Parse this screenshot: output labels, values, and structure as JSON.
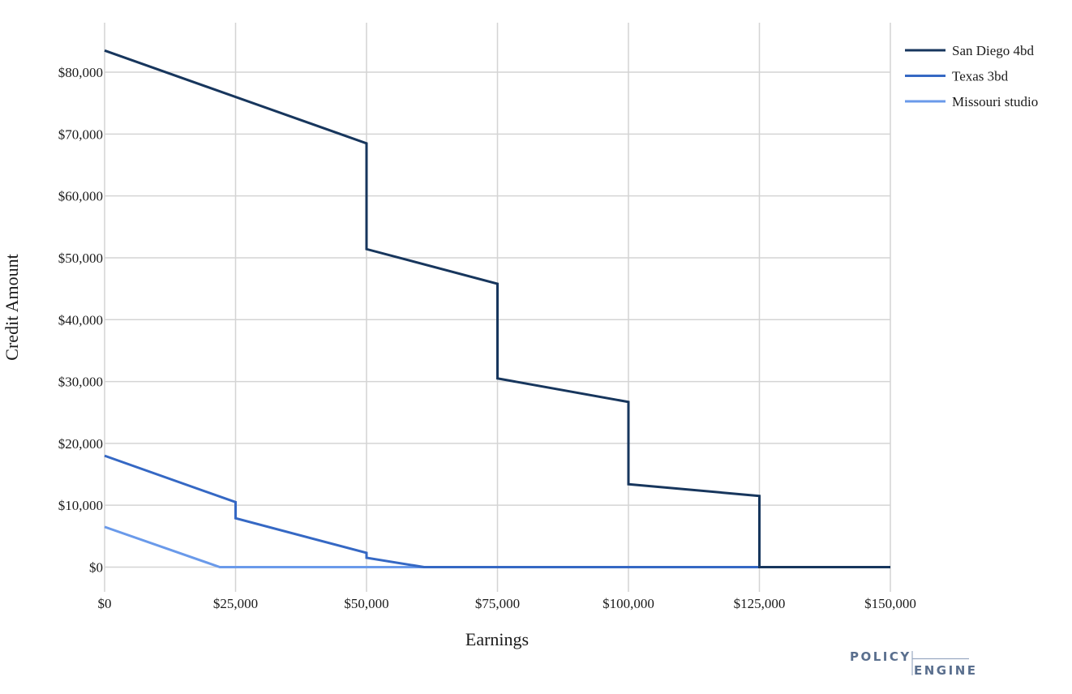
{
  "chart_data": {
    "type": "line",
    "title": "",
    "xlabel": "Earnings",
    "ylabel": "Credit Amount",
    "xlim": [
      0,
      150000
    ],
    "ylim": [
      -4000,
      88000
    ],
    "x_ticks": [
      0,
      25000,
      50000,
      75000,
      100000,
      125000,
      150000
    ],
    "x_tick_labels": [
      "$0",
      "$25,000",
      "$50,000",
      "$75,000",
      "$100,000",
      "$125,000",
      "$150,000"
    ],
    "y_ticks": [
      0,
      10000,
      20000,
      30000,
      40000,
      50000,
      60000,
      70000,
      80000
    ],
    "y_tick_labels": [
      "$0",
      "$10,000",
      "$20,000",
      "$30,000",
      "$40,000",
      "$50,000",
      "$60,000",
      "$70,000",
      "$80,000"
    ],
    "grid": true,
    "legend_position": "top-right",
    "series": [
      {
        "name": "San Diego 4bd",
        "color": "#17365d",
        "points": [
          [
            0,
            83500
          ],
          [
            50000,
            68500
          ],
          [
            50000,
            51400
          ],
          [
            75000,
            45800
          ],
          [
            75000,
            30500
          ],
          [
            100000,
            26700
          ],
          [
            100000,
            13400
          ],
          [
            125000,
            11500
          ],
          [
            125000,
            0
          ],
          [
            150000,
            0
          ]
        ]
      },
      {
        "name": "Texas 3bd",
        "color": "#3568c4",
        "points": [
          [
            0,
            18000
          ],
          [
            25000,
            10500
          ],
          [
            25000,
            7900
          ],
          [
            50000,
            2300
          ],
          [
            50000,
            1500
          ],
          [
            61000,
            0
          ],
          [
            150000,
            0
          ]
        ]
      },
      {
        "name": "Missouri studio",
        "color": "#6a9aea",
        "points": [
          [
            0,
            6500
          ],
          [
            22000,
            0
          ],
          [
            150000,
            0
          ]
        ]
      }
    ]
  },
  "logo": {
    "line1": "POLICY",
    "line2": "ENGINE"
  }
}
